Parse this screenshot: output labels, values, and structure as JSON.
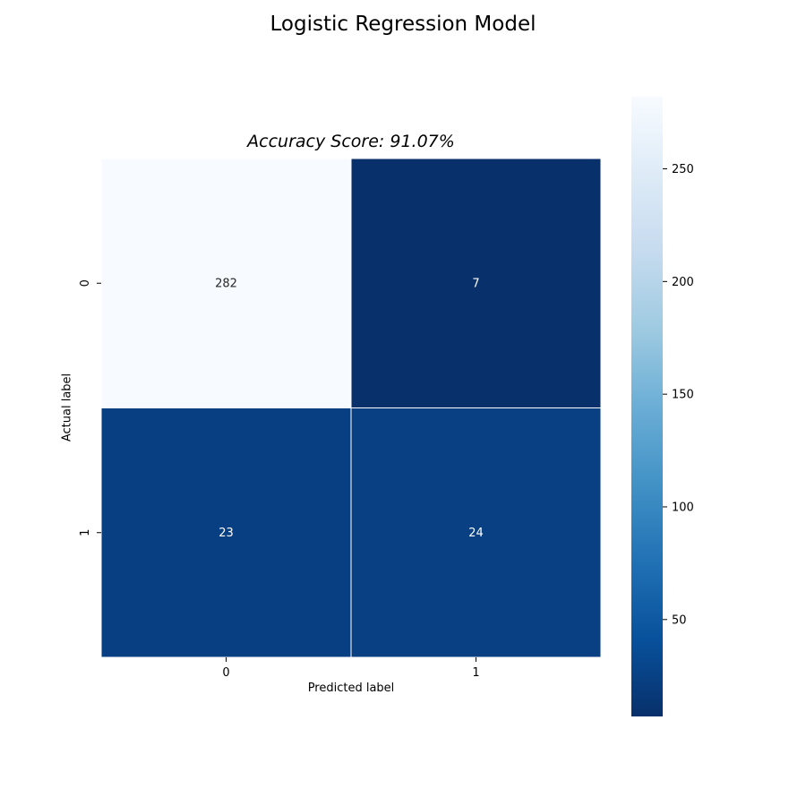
{
  "title": "Logistic Regression Model",
  "chart_data": {
    "type": "heatmap",
    "title": "Accuracy Score: 91.07%",
    "xlabel": "Predicted label",
    "ylabel": "Actual label",
    "x_categories": [
      "0",
      "1"
    ],
    "y_categories": [
      "0",
      "1"
    ],
    "values": [
      [
        282,
        7
      ],
      [
        23,
        24
      ]
    ],
    "colormap": "Blues_r",
    "color_range": [
      7,
      282
    ],
    "colorbar_ticks": [
      50,
      100,
      150,
      200,
      250
    ],
    "colors": {
      "low": "#08306b",
      "high": "#f7fbff",
      "grid": "#ffffff"
    }
  }
}
